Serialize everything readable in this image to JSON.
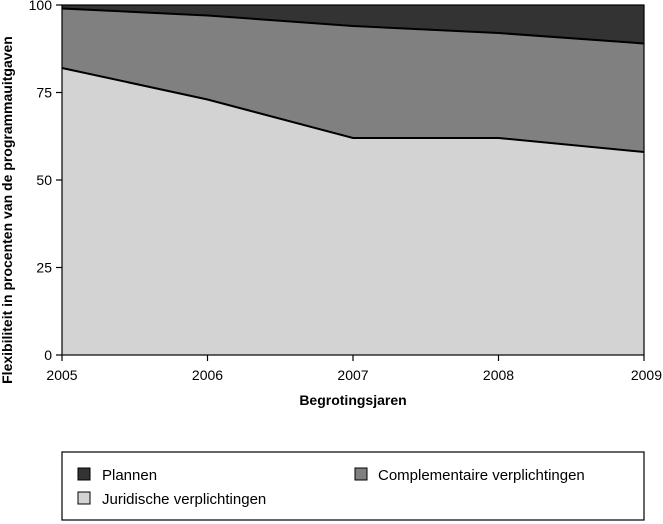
{
  "chart_data": {
    "type": "area",
    "stacked": true,
    "x": [
      2005,
      2006,
      2007,
      2008,
      2009
    ],
    "xlabel": "Begrotingsjaren",
    "ylabel": "Flexibiliteit in procenten van de programmauitgaven",
    "ylim": [
      0,
      100
    ],
    "yticks": [
      0,
      25,
      50,
      75,
      100
    ],
    "grid": false,
    "legend_position": "bottom",
    "series": [
      {
        "name": "Juridische verplichtingen",
        "values": [
          82,
          73,
          62,
          62,
          58
        ],
        "color": "#d3d3d3"
      },
      {
        "name": "Complementaire verplichtingen",
        "values": [
          17,
          24,
          32,
          30,
          31
        ],
        "color": "#808080"
      },
      {
        "name": "Plannen",
        "values": [
          1,
          3,
          6,
          8,
          11
        ],
        "color": "#333333"
      }
    ]
  },
  "legend": {
    "items": [
      {
        "label": "Plannen",
        "color": "#333333"
      },
      {
        "label": "Complementaire verplichtingen",
        "color": "#808080"
      },
      {
        "label": "Juridische verplichtingen",
        "color": "#d3d3d3"
      }
    ]
  }
}
